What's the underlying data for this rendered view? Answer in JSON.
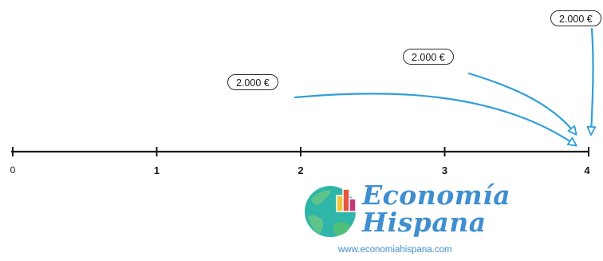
{
  "timeline": {
    "ticks": [
      {
        "label": "0",
        "bold": false
      },
      {
        "label": "1",
        "bold": true
      },
      {
        "label": "2",
        "bold": true
      },
      {
        "label": "3",
        "bold": true
      },
      {
        "label": "4",
        "bold": true
      }
    ]
  },
  "payments": [
    {
      "amount": "2.000 €",
      "period": 2
    },
    {
      "amount": "2.000 €",
      "period": 3
    },
    {
      "amount": "2.000 €",
      "period": 4
    }
  ],
  "arrow_color": "#2f9fd6",
  "logo": {
    "word_1": "Economía",
    "word_2": "Hispana",
    "url": "www.economiahispana.com",
    "brand_color": "#3f8fd0",
    "globe_colors": [
      "#2fb6a8",
      "#5ec48a",
      "#f0c53a",
      "#e8553e",
      "#c43a7a"
    ]
  }
}
